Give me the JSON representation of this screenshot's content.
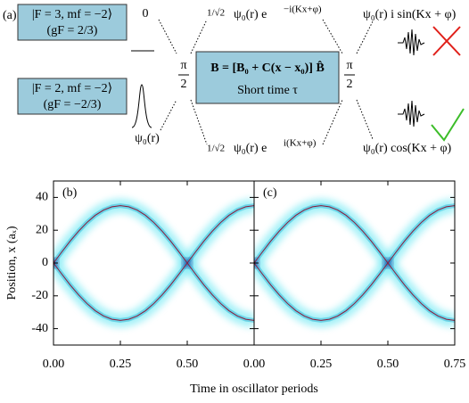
{
  "diagram": {
    "label": "(a)",
    "state_upper": {
      "ket": "|F = 3, mf = −2⟩",
      "g": "(gF = 2/3)"
    },
    "state_lower": {
      "ket": "|F = 2, mf = −2⟩",
      "g": "(gF = −2/3)"
    },
    "upper_initial": "0",
    "lower_initial": "ψ₀(r)",
    "pulse_left": {
      "num": "π",
      "den": "2"
    },
    "pulse_right": {
      "num": "π",
      "den": "2"
    },
    "upper_mid": {
      "coef": "1/√2",
      "psi": "ψ₀(r) e",
      "exp": "−i(Kx+φ)"
    },
    "lower_mid": {
      "coef": "1/√2",
      "psi": "ψ₀(r) e",
      "exp": "i(Kx+φ)"
    },
    "field": {
      "eq": "B = [B₀ + C(x − x₀)] B̂",
      "time": "Short time τ"
    },
    "upper_final": "ψ₀(r) i sin(Kx + φ)",
    "lower_final": "ψ₀(r) cos(Kx + φ)"
  },
  "chart_data": [
    {
      "type": "line",
      "label": "(b)",
      "ylabel": "Position, x (aₓ)",
      "xlabel": "Time in oscillator periods",
      "xlim": [
        0,
        0.75
      ],
      "xticks": [
        {
          "value": 0,
          "label": "0.00"
        },
        {
          "value": 0.25,
          "label": "0.25"
        },
        {
          "value": 0.5,
          "label": "0.50"
        }
      ],
      "ylim": [
        -50,
        50
      ],
      "yticks": [
        -40,
        -20,
        0,
        20,
        40
      ],
      "x": [
        0,
        0.03125,
        0.0625,
        0.09375,
        0.125,
        0.15625,
        0.1875,
        0.21875,
        0.25,
        0.28125,
        0.3125,
        0.34375,
        0.375,
        0.40625,
        0.4375,
        0.46875,
        0.5,
        0.53125,
        0.5625,
        0.59375,
        0.625,
        0.65625,
        0.6875,
        0.71875,
        0.75
      ],
      "series": [
        {
          "color": "#8b1a3a",
          "values": [
            0,
            6.8,
            13.4,
            19.4,
            24.7,
            29.1,
            32.3,
            34.3,
            35,
            34.3,
            32.3,
            29.1,
            24.7,
            19.4,
            13.4,
            6.8,
            0,
            -6.8,
            -13.4,
            -19.4,
            -24.7,
            -29.1,
            -32.3,
            -34.3,
            -35
          ]
        },
        {
          "color": "#8b1a3a",
          "values": [
            0,
            -6.8,
            -13.4,
            -19.4,
            -24.7,
            -29.1,
            -32.3,
            -34.3,
            -35,
            -34.3,
            -32.3,
            -29.1,
            -24.7,
            -19.4,
            -13.4,
            -6.8,
            0,
            6.8,
            13.4,
            19.4,
            24.7,
            29.1,
            32.3,
            34.3,
            35
          ]
        }
      ]
    },
    {
      "type": "line",
      "label": "(c)",
      "xlim": [
        0,
        0.75
      ],
      "xticks": [
        {
          "value": 0,
          "label": "0.00"
        },
        {
          "value": 0.25,
          "label": "0.25"
        },
        {
          "value": 0.5,
          "label": "0.50"
        },
        {
          "value": 0.75,
          "label": "0.75"
        }
      ],
      "ylim": [
        -50,
        50
      ],
      "yticks": [
        -40,
        -20,
        0,
        20,
        40
      ],
      "x": [
        0,
        0.03125,
        0.0625,
        0.09375,
        0.125,
        0.15625,
        0.1875,
        0.21875,
        0.25,
        0.28125,
        0.3125,
        0.34375,
        0.375,
        0.40625,
        0.4375,
        0.46875,
        0.5,
        0.53125,
        0.5625,
        0.59375,
        0.625,
        0.65625,
        0.6875,
        0.71875,
        0.75
      ],
      "series": [
        {
          "color": "#8b1a3a",
          "values": [
            0,
            6.8,
            13.4,
            19.4,
            24.7,
            29.1,
            32.3,
            34.3,
            35,
            34.3,
            32.3,
            29.1,
            24.7,
            19.4,
            13.4,
            6.8,
            0,
            -6.8,
            -13.4,
            -19.4,
            -24.7,
            -29.1,
            -32.3,
            -34.3,
            -35
          ]
        },
        {
          "color": "#8b1a3a",
          "values": [
            0,
            -6.8,
            -13.4,
            -19.4,
            -24.7,
            -29.1,
            -32.3,
            -34.3,
            -35,
            -34.3,
            -32.3,
            -29.1,
            -24.7,
            -19.4,
            -13.4,
            -6.8,
            0,
            6.8,
            13.4,
            19.4,
            24.7,
            29.1,
            32.3,
            34.3,
            35
          ]
        }
      ]
    }
  ]
}
